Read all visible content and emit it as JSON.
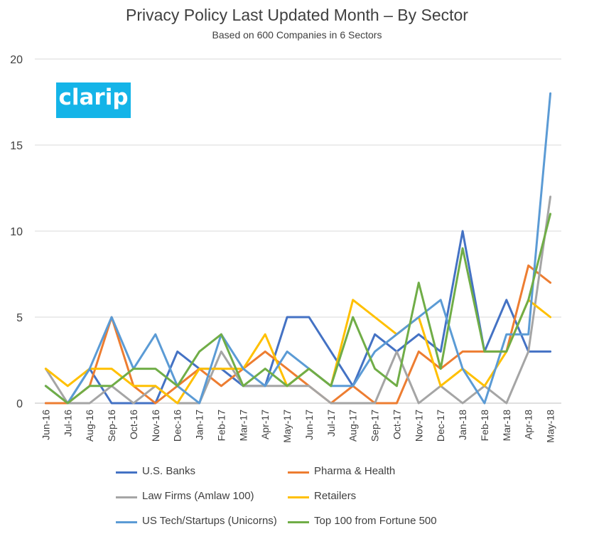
{
  "chart_data": {
    "type": "line",
    "title": "Privacy Policy Last Updated Month – By Sector",
    "subtitle": "Based on 600 Companies in 6 Sectors",
    "xlabel": "",
    "ylabel": "",
    "ylim": [
      0,
      20
    ],
    "yticks": [
      "0",
      "5",
      "10",
      "15",
      "20"
    ],
    "grid": true,
    "legend_position": "bottom",
    "categories": [
      "Jun-16",
      "Jul-16",
      "Aug-16",
      "Sep-16",
      "Oct-16",
      "Nov-16",
      "Dec-16",
      "Jan-17",
      "Feb-17",
      "Mar-17",
      "Apr-17",
      "May-17",
      "Jun-17",
      "Jul-17",
      "Aug-17",
      "Sep-17",
      "Oct-17",
      "Nov-17",
      "Dec-17",
      "Jan-18",
      "Feb-18",
      "Mar-18",
      "Apr-18",
      "May-18"
    ],
    "series": [
      {
        "name": "U.S. Banks",
        "color": "#4472c4",
        "values": [
          0,
          0,
          2,
          0,
          0,
          0,
          3,
          2,
          2,
          1,
          1,
          5,
          5,
          3,
          1,
          4,
          3,
          4,
          3,
          10,
          3,
          6,
          3,
          3
        ]
      },
      {
        "name": "Pharma & Health",
        "color": "#ed7d31",
        "values": [
          0,
          0,
          1,
          5,
          1,
          0,
          1,
          2,
          1,
          2,
          3,
          2,
          1,
          0,
          1,
          0,
          0,
          3,
          2,
          3,
          3,
          3,
          8,
          7
        ]
      },
      {
        "name": "Law Firms (Amlaw 100)",
        "color": "#a5a5a5",
        "values": [
          2,
          0,
          0,
          1,
          0,
          1,
          0,
          0,
          3,
          1,
          1,
          1,
          1,
          0,
          0,
          0,
          3,
          0,
          1,
          0,
          1,
          0,
          3,
          12
        ]
      },
      {
        "name": "Retailers",
        "color": "#ffc000",
        "values": [
          2,
          1,
          2,
          2,
          1,
          1,
          0,
          2,
          2,
          2,
          4,
          1,
          2,
          1,
          6,
          5,
          4,
          5,
          1,
          2,
          1,
          3,
          6,
          5
        ]
      },
      {
        "name": "US Tech/Startups (Unicorns)",
        "color": "#5b9bd5",
        "values": [
          1,
          0,
          2,
          5,
          2,
          4,
          1,
          0,
          4,
          2,
          1,
          3,
          2,
          1,
          1,
          3,
          4,
          5,
          6,
          2,
          0,
          4,
          4,
          18
        ]
      },
      {
        "name": "Top 100 from Fortune 500",
        "color": "#70ad47",
        "values": [
          1,
          0,
          1,
          1,
          2,
          2,
          1,
          3,
          4,
          1,
          2,
          1,
          2,
          1,
          5,
          2,
          1,
          7,
          2,
          9,
          3,
          3,
          6,
          11
        ]
      }
    ]
  },
  "logo": {
    "text": "clarip"
  }
}
